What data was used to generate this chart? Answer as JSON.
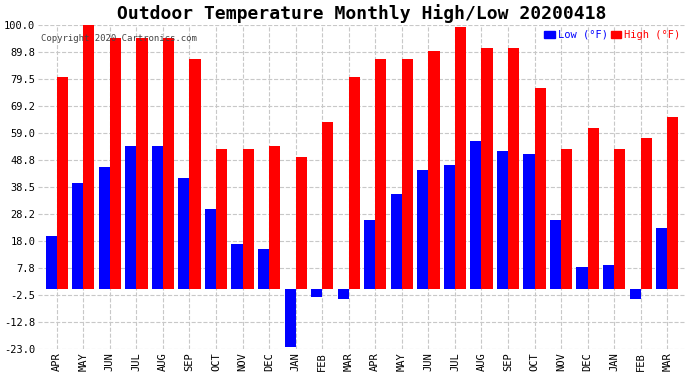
{
  "title": "Outdoor Temperature Monthly High/Low 20200418",
  "copyright": "Copyright 2020 Cartronics.com",
  "legend_low": "Low",
  "legend_high": "High",
  "legend_unit": "(°F)",
  "months": [
    "APR",
    "MAY",
    "JUN",
    "JUL",
    "AUG",
    "SEP",
    "OCT",
    "NOV",
    "DEC",
    "JAN",
    "FEB",
    "MAR",
    "APR",
    "MAY",
    "JUN",
    "JUL",
    "AUG",
    "SEP",
    "OCT",
    "NOV",
    "DEC",
    "JAN",
    "FEB",
    "MAR"
  ],
  "high_values": [
    80.0,
    100.0,
    95.0,
    95.0,
    95.0,
    87.0,
    53.0,
    53.0,
    54.0,
    50.0,
    63.0,
    80.0,
    87.0,
    87.0,
    90.0,
    99.0,
    91.0,
    91.0,
    76.0,
    53.0,
    61.0,
    53.0,
    57.0,
    65.0
  ],
  "low_values": [
    20.0,
    40.0,
    46.0,
    54.0,
    54.0,
    42.0,
    30.0,
    17.0,
    15.0,
    -22.0,
    -3.0,
    -4.0,
    26.0,
    36.0,
    45.0,
    47.0,
    56.0,
    52.0,
    51.0,
    26.0,
    8.0,
    9.0,
    -4.0,
    23.0
  ],
  "high_color": "#ff0000",
  "low_color": "#0000ff",
  "background_color": "#ffffff",
  "grid_color": "#c8c8c8",
  "ylim": [
    -23.0,
    100.0
  ],
  "yticks": [
    -23.0,
    -12.8,
    -2.5,
    7.8,
    18.0,
    28.2,
    38.5,
    48.8,
    59.0,
    69.2,
    79.5,
    89.8,
    100.0
  ],
  "title_fontsize": 13,
  "tick_fontsize": 7.5,
  "bar_width": 0.42
}
